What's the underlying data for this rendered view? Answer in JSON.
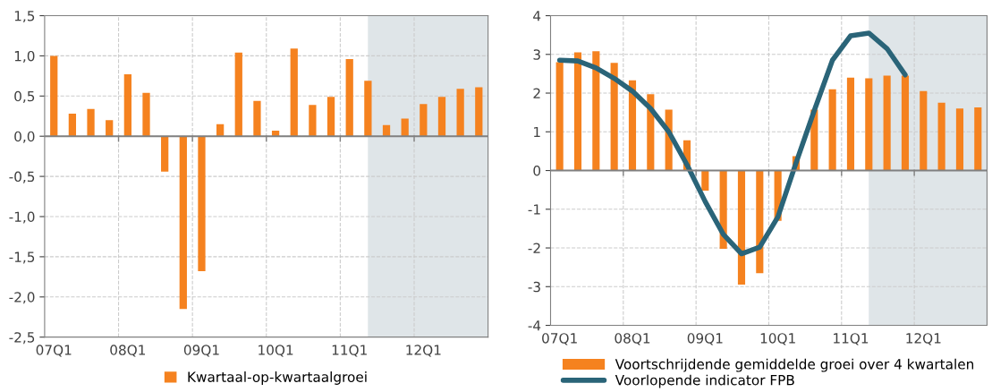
{
  "chart_data": [
    {
      "type": "bar",
      "categories": [
        "07Q1",
        null,
        null,
        null,
        "08Q1",
        null,
        null,
        null,
        "09Q1",
        null,
        null,
        null,
        "10Q1",
        null,
        null,
        null,
        "11Q1",
        null,
        null,
        null,
        "12Q1",
        null,
        null,
        null
      ],
      "series": [
        {
          "name": "Kwartaal-op-kwartaalgroei",
          "color": "#f5821f",
          "values": [
            1.0,
            0.28,
            0.34,
            0.2,
            0.77,
            0.54,
            -0.44,
            -2.15,
            -1.68,
            0.15,
            1.04,
            0.44,
            0.07,
            1.09,
            0.39,
            0.49,
            0.96,
            0.69,
            0.14,
            0.22,
            0.4,
            0.49,
            0.59,
            0.61
          ]
        }
      ],
      "ylim": [
        -2.5,
        1.5
      ],
      "yticks": [
        {
          "value": -2.5,
          "label": "-2,5"
        },
        {
          "value": -2.0,
          "label": "-2,0"
        },
        {
          "value": -1.5,
          "label": "-1,5"
        },
        {
          "value": -1.0,
          "label": "-1,0"
        },
        {
          "value": -0.5,
          "label": "-0,5"
        },
        {
          "value": 0.0,
          "label": "0,0"
        },
        {
          "value": 0.5,
          "label": "0,5"
        },
        {
          "value": 1.0,
          "label": "1,0"
        },
        {
          "value": 1.5,
          "label": "1,5"
        }
      ],
      "grid": true,
      "legend": "bottom"
    },
    {
      "type": "bar",
      "categories": [
        "07Q1",
        null,
        null,
        null,
        "08Q1",
        null,
        null,
        null,
        "09Q1",
        null,
        null,
        null,
        "10Q1",
        null,
        null,
        null,
        "11Q1",
        null,
        null,
        null,
        "12Q1",
        null,
        null,
        null
      ],
      "series": [
        {
          "name": "Voortschrijdende gemiddelde groei over 4 kwartalen",
          "color": "#f5821f",
          "values": [
            2.8,
            3.05,
            3.08,
            2.78,
            2.33,
            1.97,
            1.57,
            0.78,
            -0.52,
            -2.02,
            -2.95,
            -2.65,
            -1.3,
            0.37,
            1.57,
            2.1,
            2.4,
            2.38,
            2.45,
            2.45,
            2.05,
            1.75,
            1.6,
            1.63
          ]
        },
        {
          "name": "Voorlopende indicator FPB",
          "type": "line",
          "color": "#2a6478",
          "values": [
            2.85,
            2.83,
            2.65,
            2.38,
            2.05,
            1.6,
            1.0,
            0.15,
            -0.8,
            -1.65,
            -2.15,
            -1.98,
            -1.2,
            0.2,
            1.55,
            2.85,
            3.48,
            3.55,
            3.15,
            2.47,
            null,
            null,
            null,
            null
          ]
        }
      ],
      "ylim": [
        -4,
        4
      ],
      "yticks": [
        -4,
        -3,
        -2,
        -1,
        0,
        1,
        2,
        3,
        4
      ],
      "grid": true,
      "legend": "bottom",
      "marker": "none",
      "line_style": "solid"
    }
  ]
}
